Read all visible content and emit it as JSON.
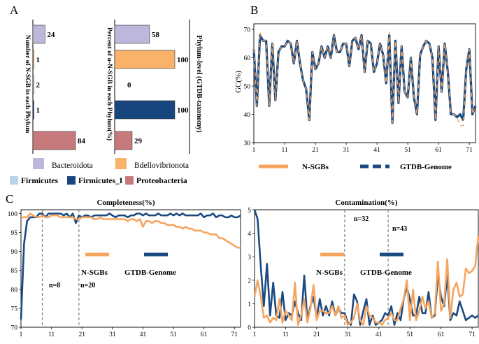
{
  "panel_labels": {
    "a": "A",
    "b": "B",
    "c": "C"
  },
  "colors": {
    "Bacteroidota": "#bdb7dc",
    "Bdellovibrionota": "#f8b26a",
    "Firmicutes": "#b9d6e8",
    "Firmicutes_I": "#17467e",
    "Proteobacteria": "#c77a7c",
    "gtdb": "#1b4a80",
    "nsgb": "#f6a55f",
    "vline": "#808080"
  },
  "chart_data": [
    {
      "id": "A1",
      "type": "bar",
      "orientation": "horizontal",
      "ylabel": "Number of N-SGB in each Phylum",
      "categories": [
        "Bacteroidota",
        "Bdellovibrionota",
        "Firmicutes",
        "Firmicutes_I",
        "Proteobacteria"
      ],
      "values": [
        24,
        1,
        2,
        1,
        84
      ],
      "labels": [
        "24",
        "1",
        "2",
        "1",
        "84"
      ],
      "xlim": [
        0,
        84
      ]
    },
    {
      "id": "A2",
      "type": "bar",
      "orientation": "horizontal",
      "ylabel": "Percent of u-N-SGB in each Phylum(%)",
      "categories": [
        "Bacteroidota",
        "Bdellovibrionota",
        "Firmicutes",
        "Firmicutes_I",
        "Proteobacteria"
      ],
      "values": [
        58,
        100,
        0,
        100,
        29
      ],
      "labels": [
        "58",
        "100",
        "0",
        "100",
        "29"
      ],
      "xlim": [
        0,
        100
      ],
      "side_label": "Phylum-level (GTDB-taxonomy)",
      "legend": [
        "Bacteroidota",
        "Bdellovibrionota",
        "Firmicutes",
        "Firmicutes_I",
        "Proteobacteria"
      ]
    },
    {
      "id": "B",
      "type": "line",
      "ylabel": "GC(%)",
      "ylim": [
        30,
        72
      ],
      "yticks": [
        30,
        40,
        50,
        60,
        70
      ],
      "xticks": [
        1,
        11,
        21,
        31,
        41,
        51,
        61,
        71
      ],
      "x_range": [
        1,
        73
      ],
      "legend": [
        "N-SGBs",
        "GTDB-Genome"
      ],
      "series": [
        {
          "name": "GTDB-Genome",
          "values": [
            63,
            43,
            68,
            66,
            66,
            43,
            65,
            45,
            62,
            64,
            64,
            66,
            65,
            58,
            66,
            58,
            52,
            49,
            38,
            62,
            56,
            58,
            64,
            60,
            64,
            60,
            68,
            62,
            62,
            65,
            65,
            57,
            66,
            67,
            63,
            68,
            55,
            66,
            65,
            55,
            58,
            65,
            61,
            51,
            68,
            37,
            66,
            44,
            64,
            48,
            46,
            60,
            46,
            40,
            61,
            64,
            66,
            65,
            60,
            38,
            64,
            48,
            65,
            55,
            40,
            40,
            39,
            40,
            38,
            56,
            63,
            40,
            43
          ]
        },
        {
          "name": "N-SGBs",
          "values": [
            63,
            43,
            69,
            66,
            66,
            43,
            65,
            45,
            62,
            64,
            64,
            66,
            65,
            58,
            66,
            58,
            52,
            49,
            38,
            62,
            56,
            58,
            64,
            60,
            64,
            60,
            68,
            62,
            62,
            65,
            65,
            57,
            66,
            67,
            63,
            68,
            55,
            66,
            65,
            55,
            58,
            65,
            61,
            51,
            69,
            37,
            66,
            44,
            64,
            48,
            46,
            60,
            46,
            40,
            61,
            64,
            66,
            65,
            60,
            38,
            64,
            48,
            65,
            55,
            40,
            40,
            39,
            36,
            36,
            56,
            63,
            40,
            43
          ]
        }
      ]
    },
    {
      "id": "C1",
      "type": "line",
      "title": "Completeness(%)",
      "ylim": [
        70,
        101
      ],
      "yticks": [
        70,
        75,
        80,
        85,
        90,
        95,
        100
      ],
      "xticks": [
        1,
        11,
        21,
        31,
        41,
        51,
        61,
        71
      ],
      "x_range": [
        1,
        73
      ],
      "legend": [
        "N-SGBs",
        "GTDB-Genome"
      ],
      "vlines": [
        {
          "x": 8,
          "label": "n=8"
        },
        {
          "x": 20,
          "label": "n=20"
        }
      ],
      "series": [
        {
          "name": "GTDB-Genome",
          "values": [
            72,
            92,
            98,
            99,
            99,
            99,
            100,
            100,
            99,
            100,
            100,
            100,
            100,
            100,
            99.5,
            100,
            99,
            100,
            97.5,
            99.5,
            99,
            99.5,
            99.5,
            99,
            99.5,
            99.5,
            99.5,
            99.5,
            99.5,
            100,
            99.5,
            99,
            99.5,
            99.5,
            99.5,
            99,
            99.5,
            99.5,
            100,
            100,
            99.5,
            100,
            99.5,
            99.5,
            99.5,
            100,
            99.5,
            99.5,
            99.5,
            100,
            99.5,
            100,
            99.5,
            100,
            99.5,
            99.5,
            99.5,
            99.5,
            99.5,
            100,
            99,
            99.5,
            99.5,
            100,
            99,
            99.5,
            99.5,
            99,
            99,
            99.5,
            99,
            99,
            99.5
          ]
        },
        {
          "name": "N-SGBs",
          "values": [
            99,
            99,
            99,
            100,
            99.5,
            99,
            99,
            99.5,
            99,
            99,
            99.5,
            99.5,
            99.5,
            99,
            99,
            99,
            99,
            99,
            98.5,
            98.5,
            99,
            99,
            99,
            99,
            98.5,
            98.5,
            99,
            98.5,
            98.5,
            98.5,
            98.5,
            98.5,
            98.5,
            98.5,
            98.5,
            98,
            98.5,
            98.5,
            98,
            98.5,
            96.5,
            98,
            98,
            97.5,
            98,
            98,
            97.5,
            97.5,
            97,
            97,
            97,
            96.5,
            96.5,
            96,
            96.5,
            96,
            96,
            95.5,
            95.5,
            95.5,
            95,
            95,
            94.5,
            94.5,
            94.5,
            93.5,
            93.5,
            93,
            92.5,
            92,
            91.5,
            91,
            91
          ]
        }
      ]
    },
    {
      "id": "C2",
      "type": "line",
      "title": "Contamination(%)",
      "ylim": [
        0,
        5
      ],
      "yticks": [
        0,
        1,
        2,
        3,
        4,
        5
      ],
      "xticks": [
        1,
        11,
        21,
        31,
        41,
        51,
        61,
        71
      ],
      "x_range": [
        1,
        73
      ],
      "legend": [
        "N-SGBs",
        "GTDB-Genome"
      ],
      "vlines": [
        {
          "x": 30,
          "label": "n=32"
        },
        {
          "x": 44,
          "label": "n=43"
        }
      ],
      "series": [
        {
          "name": "GTDB-Genome",
          "values": [
            5,
            4.6,
            2.6,
            0.9,
            2.7,
            0.5,
            1.9,
            0.5,
            0.4,
            1.5,
            0.3,
            0.6,
            0.5,
            1.1,
            0.6,
            0.3,
            2.2,
            0.3,
            0.9,
            1.3,
            0.4,
            1.2,
            0.5,
            0.9,
            0.5,
            1.1,
            0.5,
            0.8,
            0.6,
            0.6,
            0.2,
            0.1,
            1.4,
            1.1,
            0.1,
            0.7,
            1.2,
            0.1,
            0.5,
            0.1,
            0.2,
            0.3,
            0.6,
            0.5,
            0.9,
            0.1,
            0.6,
            0.3,
            1.2,
            1.7,
            1.2,
            0.5,
            0.5,
            1.3,
            0.6,
            0.6,
            1.5,
            0.4,
            0.5,
            2.2,
            1.3,
            0.9,
            2.2,
            0.3,
            0.6,
            0.5,
            1.1,
            0.7,
            0.3,
            0.4,
            0.5,
            0.4,
            0.5
          ]
        },
        {
          "name": "N-SGBs",
          "values": [
            1.3,
            2,
            1.3,
            0.4,
            0.5,
            0.2,
            0.4,
            0.3,
            1.2,
            0.2,
            0.7,
            0.5,
            0.3,
            1.9,
            0.1,
            0.5,
            1.2,
            0.2,
            0.8,
            1.8,
            0.3,
            0.7,
            0.7,
            0.6,
            0.6,
            0.9,
            0.5,
            0.9,
            0.4,
            0.5,
            0.1,
            0.2,
            0.4,
            1,
            0.3,
            0.1,
            0.9,
            0.5,
            0.4,
            0.2,
            0.2,
            0.1,
            0.3,
            0.4,
            0.6,
            0.3,
            0.3,
            0.8,
            1.2,
            2,
            0.3,
            1.6,
            0.3,
            0.7,
            1.3,
            0.8,
            1.1,
            0.4,
            0.6,
            2.8,
            0.7,
            1,
            2.9,
            0.4,
            1.6,
            1.9,
            1.3,
            1.4,
            2.5,
            2.3,
            2.4,
            2.6,
            3.9
          ]
        }
      ]
    }
  ]
}
